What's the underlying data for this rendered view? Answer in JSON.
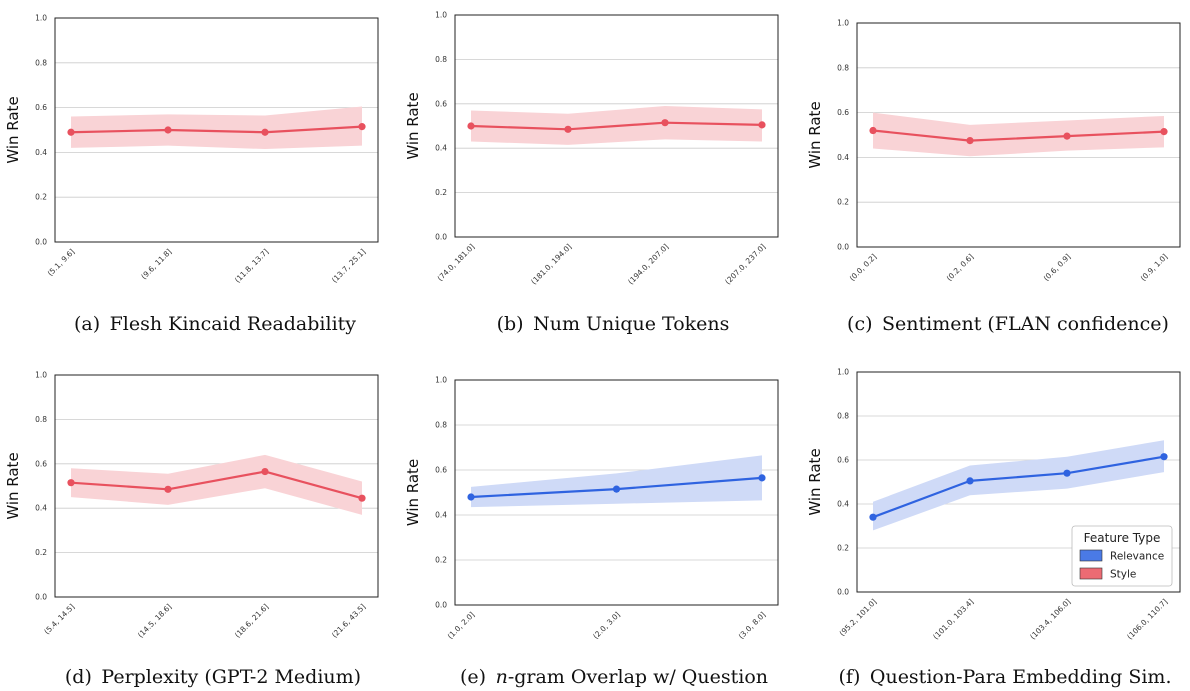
{
  "colors": {
    "style_line": "#e8515e",
    "style_band": "#f9d3d6",
    "relevance_line": "#2f63e0",
    "relevance_band": "#cfdaf7",
    "relevance_swatch": "#4a7ae6",
    "style_swatch": "#ec6b73",
    "grid": "#cccccc",
    "frame": "#222222"
  },
  "legend": {
    "title": "Feature Type",
    "items": [
      {
        "label": "Relevance",
        "feature": "relevance"
      },
      {
        "label": "Style",
        "feature": "style"
      }
    ]
  },
  "chart_data": [
    {
      "type": "line",
      "caption_prefix": "(a)",
      "caption_text": "Flesh Kincaid Readability",
      "ylabel": "Win Rate",
      "ylim": [
        0,
        1
      ],
      "yticks": [
        "0.0",
        "0.2",
        "0.4",
        "0.6",
        "0.8",
        "1.0"
      ],
      "grid": true,
      "feature": "style",
      "categories": [
        "(5.1, 9.6]",
        "(9.6, 11.8]",
        "(11.8, 13.7]",
        "(13.7, 25.1]"
      ],
      "values": [
        0.49,
        0.5,
        0.49,
        0.515
      ],
      "lower": [
        0.42,
        0.43,
        0.415,
        0.43
      ],
      "upper": [
        0.56,
        0.57,
        0.565,
        0.605
      ]
    },
    {
      "type": "line",
      "caption_prefix": "(b)",
      "caption_text": "Num Unique Tokens",
      "ylabel": "Win Rate",
      "ylim": [
        0,
        1
      ],
      "yticks": [
        "0.0",
        "0.2",
        "0.4",
        "0.6",
        "0.8",
        "1.0"
      ],
      "grid": true,
      "feature": "style",
      "categories": [
        "(74.0, 181.0]",
        "(181.0, 194.0]",
        "(194.0, 207.0]",
        "(207.0, 237.0]"
      ],
      "values": [
        0.5,
        0.485,
        0.515,
        0.505
      ],
      "lower": [
        0.43,
        0.415,
        0.44,
        0.43
      ],
      "upper": [
        0.57,
        0.555,
        0.59,
        0.575
      ]
    },
    {
      "type": "line",
      "caption_prefix": "(c)",
      "caption_text": "Sentiment (FLAN confidence)",
      "ylabel": "Win Rate",
      "ylim": [
        0,
        1
      ],
      "yticks": [
        "0.0",
        "0.2",
        "0.4",
        "0.6",
        "0.8",
        "1.0"
      ],
      "grid": true,
      "feature": "style",
      "categories": [
        "(0.0, 0.2]",
        "(0.2, 0.6]",
        "(0.6, 0.9]",
        "(0.9, 1.0]"
      ],
      "values": [
        0.52,
        0.475,
        0.495,
        0.515
      ],
      "lower": [
        0.44,
        0.405,
        0.43,
        0.445
      ],
      "upper": [
        0.6,
        0.545,
        0.565,
        0.585
      ]
    },
    {
      "type": "line",
      "caption_prefix": "(d)",
      "caption_text": "Perplexity (GPT-2 Medium)",
      "ylabel": "Win Rate",
      "ylim": [
        0,
        1
      ],
      "yticks": [
        "0.0",
        "0.2",
        "0.4",
        "0.6",
        "0.8",
        "1.0"
      ],
      "grid": true,
      "feature": "style",
      "categories": [
        "(5.4, 14.5]",
        "(14.5, 18.6]",
        "(18.6, 21.6]",
        "(21.6, 43.5]"
      ],
      "values": [
        0.515,
        0.485,
        0.565,
        0.445
      ],
      "lower": [
        0.45,
        0.415,
        0.49,
        0.37
      ],
      "upper": [
        0.58,
        0.555,
        0.64,
        0.52
      ]
    },
    {
      "type": "line",
      "caption_prefix": "(e)",
      "caption_italic": "n",
      "caption_text": "-gram Overlap w/ Question",
      "ylabel": "Win Rate",
      "ylim": [
        0,
        1
      ],
      "yticks": [
        "0.0",
        "0.2",
        "0.4",
        "0.6",
        "0.8",
        "1.0"
      ],
      "grid": true,
      "feature": "relevance",
      "categories": [
        "(1.0, 2.0]",
        "(2.0, 3.0]",
        "(3.0, 8.0]"
      ],
      "values": [
        0.48,
        0.515,
        0.565
      ],
      "lower": [
        0.435,
        0.45,
        0.465
      ],
      "upper": [
        0.525,
        0.585,
        0.665
      ]
    },
    {
      "type": "line",
      "caption_prefix": "(f)",
      "caption_text": "Question-Para Embedding Sim.",
      "ylabel": "Win Rate",
      "ylim": [
        0,
        1
      ],
      "yticks": [
        "0.0",
        "0.2",
        "0.4",
        "0.6",
        "0.8",
        "1.0"
      ],
      "grid": true,
      "feature": "relevance",
      "legend": "lower-right",
      "categories": [
        "(95.2, 101.0]",
        "(101.0, 103.4]",
        "(103.4, 106.0]",
        "(106.0, 110.7]"
      ],
      "values": [
        0.34,
        0.505,
        0.54,
        0.615
      ],
      "lower": [
        0.28,
        0.44,
        0.47,
        0.545
      ],
      "upper": [
        0.41,
        0.575,
        0.615,
        0.69
      ]
    }
  ]
}
